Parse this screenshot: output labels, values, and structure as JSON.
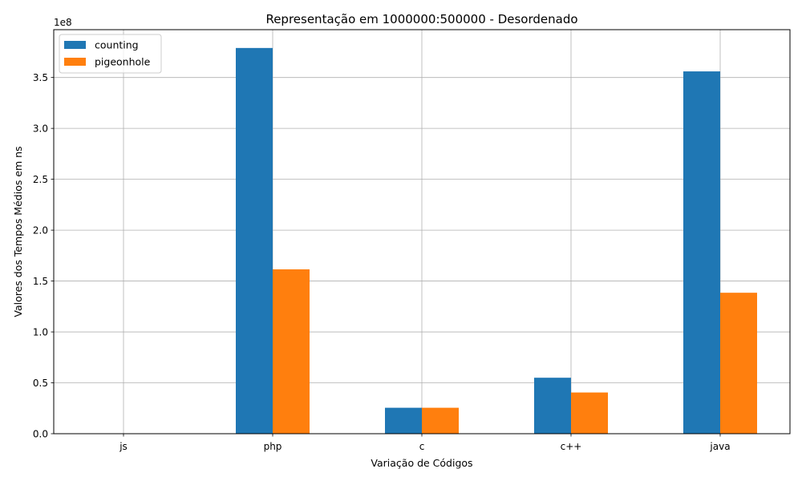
{
  "chart_data": {
    "type": "bar",
    "title": "Representação em 1000000:500000 - Desordenado",
    "xlabel": "Variação de Códigos",
    "ylabel": "Valores dos Tempos Médios em ns",
    "offset_label": "1e8",
    "categories": [
      "js",
      "php",
      "c",
      "c++",
      "java"
    ],
    "ylim": [
      0,
      397000000
    ],
    "yticks": [
      0,
      50000000,
      100000000,
      150000000,
      200000000,
      250000000,
      300000000,
      350000000
    ],
    "ytick_labels": [
      "0.0",
      "0.5",
      "1.0",
      "1.5",
      "2.0",
      "2.5",
      "3.0",
      "3.5"
    ],
    "grid": true,
    "legend_position": "top-left",
    "series": [
      {
        "name": "counting",
        "color": "#1f77b4",
        "values": [
          0,
          379000000,
          25500000,
          55000000,
          356000000
        ]
      },
      {
        "name": "pigeonhole",
        "color": "#ff7f0e",
        "values": [
          0,
          161500000,
          25500000,
          40500000,
          138500000
        ]
      }
    ]
  }
}
